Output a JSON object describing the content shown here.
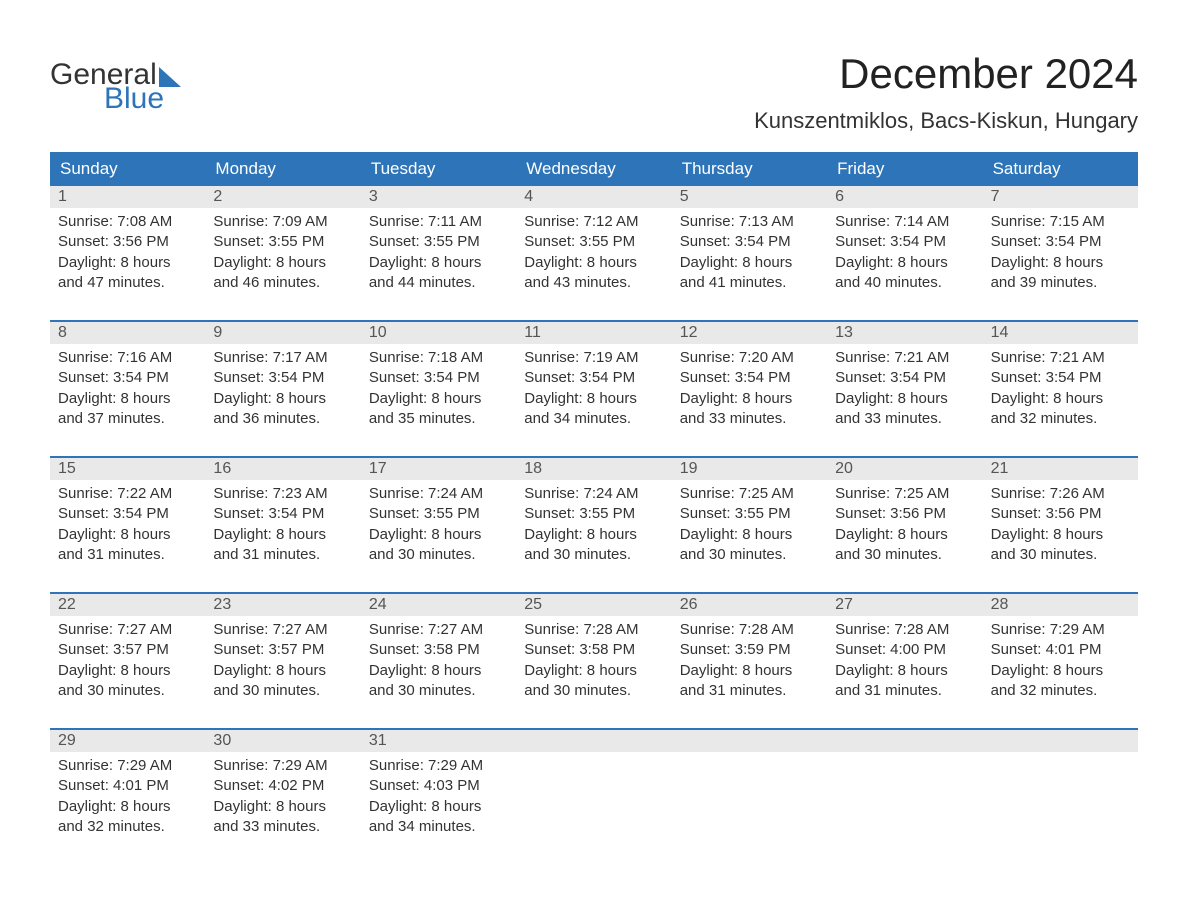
{
  "logo": {
    "word1": "General",
    "word2": "Blue"
  },
  "title": "December 2024",
  "location": "Kunszentmiklos, Bacs-Kiskun, Hungary",
  "day_headers": [
    "Sunday",
    "Monday",
    "Tuesday",
    "Wednesday",
    "Thursday",
    "Friday",
    "Saturday"
  ],
  "colors": {
    "header_bg": "#2d74b8",
    "header_text": "#ffffff",
    "daynum_bg": "#e9e9e9",
    "body_text": "#333333",
    "title_text": "#222222",
    "logo_blue": "#2d74b8"
  },
  "weeks": [
    [
      {
        "n": "1",
        "sunrise": "Sunrise: 7:08 AM",
        "sunset": "Sunset: 3:56 PM",
        "d1": "Daylight: 8 hours",
        "d2": "and 47 minutes."
      },
      {
        "n": "2",
        "sunrise": "Sunrise: 7:09 AM",
        "sunset": "Sunset: 3:55 PM",
        "d1": "Daylight: 8 hours",
        "d2": "and 46 minutes."
      },
      {
        "n": "3",
        "sunrise": "Sunrise: 7:11 AM",
        "sunset": "Sunset: 3:55 PM",
        "d1": "Daylight: 8 hours",
        "d2": "and 44 minutes."
      },
      {
        "n": "4",
        "sunrise": "Sunrise: 7:12 AM",
        "sunset": "Sunset: 3:55 PM",
        "d1": "Daylight: 8 hours",
        "d2": "and 43 minutes."
      },
      {
        "n": "5",
        "sunrise": "Sunrise: 7:13 AM",
        "sunset": "Sunset: 3:54 PM",
        "d1": "Daylight: 8 hours",
        "d2": "and 41 minutes."
      },
      {
        "n": "6",
        "sunrise": "Sunrise: 7:14 AM",
        "sunset": "Sunset: 3:54 PM",
        "d1": "Daylight: 8 hours",
        "d2": "and 40 minutes."
      },
      {
        "n": "7",
        "sunrise": "Sunrise: 7:15 AM",
        "sunset": "Sunset: 3:54 PM",
        "d1": "Daylight: 8 hours",
        "d2": "and 39 minutes."
      }
    ],
    [
      {
        "n": "8",
        "sunrise": "Sunrise: 7:16 AM",
        "sunset": "Sunset: 3:54 PM",
        "d1": "Daylight: 8 hours",
        "d2": "and 37 minutes."
      },
      {
        "n": "9",
        "sunrise": "Sunrise: 7:17 AM",
        "sunset": "Sunset: 3:54 PM",
        "d1": "Daylight: 8 hours",
        "d2": "and 36 minutes."
      },
      {
        "n": "10",
        "sunrise": "Sunrise: 7:18 AM",
        "sunset": "Sunset: 3:54 PM",
        "d1": "Daylight: 8 hours",
        "d2": "and 35 minutes."
      },
      {
        "n": "11",
        "sunrise": "Sunrise: 7:19 AM",
        "sunset": "Sunset: 3:54 PM",
        "d1": "Daylight: 8 hours",
        "d2": "and 34 minutes."
      },
      {
        "n": "12",
        "sunrise": "Sunrise: 7:20 AM",
        "sunset": "Sunset: 3:54 PM",
        "d1": "Daylight: 8 hours",
        "d2": "and 33 minutes."
      },
      {
        "n": "13",
        "sunrise": "Sunrise: 7:21 AM",
        "sunset": "Sunset: 3:54 PM",
        "d1": "Daylight: 8 hours",
        "d2": "and 33 minutes."
      },
      {
        "n": "14",
        "sunrise": "Sunrise: 7:21 AM",
        "sunset": "Sunset: 3:54 PM",
        "d1": "Daylight: 8 hours",
        "d2": "and 32 minutes."
      }
    ],
    [
      {
        "n": "15",
        "sunrise": "Sunrise: 7:22 AM",
        "sunset": "Sunset: 3:54 PM",
        "d1": "Daylight: 8 hours",
        "d2": "and 31 minutes."
      },
      {
        "n": "16",
        "sunrise": "Sunrise: 7:23 AM",
        "sunset": "Sunset: 3:54 PM",
        "d1": "Daylight: 8 hours",
        "d2": "and 31 minutes."
      },
      {
        "n": "17",
        "sunrise": "Sunrise: 7:24 AM",
        "sunset": "Sunset: 3:55 PM",
        "d1": "Daylight: 8 hours",
        "d2": "and 30 minutes."
      },
      {
        "n": "18",
        "sunrise": "Sunrise: 7:24 AM",
        "sunset": "Sunset: 3:55 PM",
        "d1": "Daylight: 8 hours",
        "d2": "and 30 minutes."
      },
      {
        "n": "19",
        "sunrise": "Sunrise: 7:25 AM",
        "sunset": "Sunset: 3:55 PM",
        "d1": "Daylight: 8 hours",
        "d2": "and 30 minutes."
      },
      {
        "n": "20",
        "sunrise": "Sunrise: 7:25 AM",
        "sunset": "Sunset: 3:56 PM",
        "d1": "Daylight: 8 hours",
        "d2": "and 30 minutes."
      },
      {
        "n": "21",
        "sunrise": "Sunrise: 7:26 AM",
        "sunset": "Sunset: 3:56 PM",
        "d1": "Daylight: 8 hours",
        "d2": "and 30 minutes."
      }
    ],
    [
      {
        "n": "22",
        "sunrise": "Sunrise: 7:27 AM",
        "sunset": "Sunset: 3:57 PM",
        "d1": "Daylight: 8 hours",
        "d2": "and 30 minutes."
      },
      {
        "n": "23",
        "sunrise": "Sunrise: 7:27 AM",
        "sunset": "Sunset: 3:57 PM",
        "d1": "Daylight: 8 hours",
        "d2": "and 30 minutes."
      },
      {
        "n": "24",
        "sunrise": "Sunrise: 7:27 AM",
        "sunset": "Sunset: 3:58 PM",
        "d1": "Daylight: 8 hours",
        "d2": "and 30 minutes."
      },
      {
        "n": "25",
        "sunrise": "Sunrise: 7:28 AM",
        "sunset": "Sunset: 3:58 PM",
        "d1": "Daylight: 8 hours",
        "d2": "and 30 minutes."
      },
      {
        "n": "26",
        "sunrise": "Sunrise: 7:28 AM",
        "sunset": "Sunset: 3:59 PM",
        "d1": "Daylight: 8 hours",
        "d2": "and 31 minutes."
      },
      {
        "n": "27",
        "sunrise": "Sunrise: 7:28 AM",
        "sunset": "Sunset: 4:00 PM",
        "d1": "Daylight: 8 hours",
        "d2": "and 31 minutes."
      },
      {
        "n": "28",
        "sunrise": "Sunrise: 7:29 AM",
        "sunset": "Sunset: 4:01 PM",
        "d1": "Daylight: 8 hours",
        "d2": "and 32 minutes."
      }
    ],
    [
      {
        "n": "29",
        "sunrise": "Sunrise: 7:29 AM",
        "sunset": "Sunset: 4:01 PM",
        "d1": "Daylight: 8 hours",
        "d2": "and 32 minutes."
      },
      {
        "n": "30",
        "sunrise": "Sunrise: 7:29 AM",
        "sunset": "Sunset: 4:02 PM",
        "d1": "Daylight: 8 hours",
        "d2": "and 33 minutes."
      },
      {
        "n": "31",
        "sunrise": "Sunrise: 7:29 AM",
        "sunset": "Sunset: 4:03 PM",
        "d1": "Daylight: 8 hours",
        "d2": "and 34 minutes."
      },
      null,
      null,
      null,
      null
    ]
  ]
}
